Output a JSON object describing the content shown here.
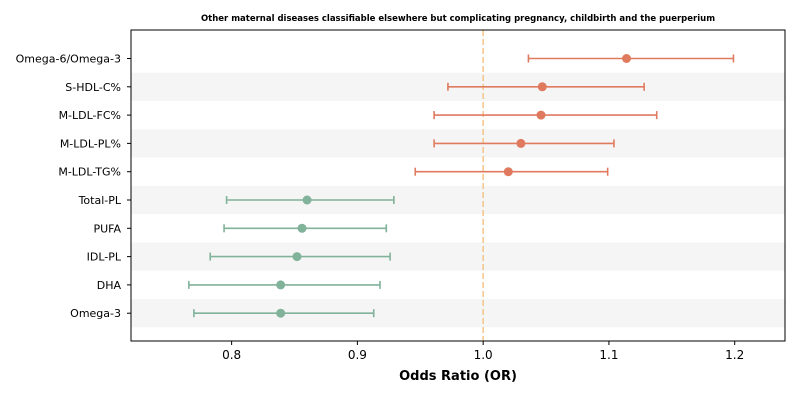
{
  "chart_data": {
    "type": "forest",
    "title": "Other maternal diseases classifiable elsewhere but complicating pregnancy, childbirth and the puerperium",
    "xlabel": "Odds Ratio (OR)",
    "xlim": [
      0.72,
      1.24
    ],
    "xticks": [
      0.8,
      0.9,
      1.0,
      1.1,
      1.2
    ],
    "xtick_labels": [
      "0.8",
      "0.9",
      "1.0",
      "1.1",
      "1.2"
    ],
    "reference_line": 1.0,
    "colors": {
      "positive": "#e07a5f",
      "negative": "#81b29a",
      "reference": "#f4c58a",
      "band": "#f5f5f5"
    },
    "rows": [
      {
        "label": "Omega-6/Omega-3",
        "or": 1.114,
        "lower": 1.036,
        "upper": 1.199,
        "group": "positive"
      },
      {
        "label": "S-HDL-C%",
        "or": 1.047,
        "lower": 0.972,
        "upper": 1.128,
        "group": "positive"
      },
      {
        "label": "M-LDL-FC%",
        "or": 1.046,
        "lower": 0.961,
        "upper": 1.138,
        "group": "positive"
      },
      {
        "label": "M-LDL-PL%",
        "or": 1.03,
        "lower": 0.961,
        "upper": 1.104,
        "group": "positive"
      },
      {
        "label": "M-LDL-TG%",
        "or": 1.02,
        "lower": 0.946,
        "upper": 1.099,
        "group": "positive"
      },
      {
        "label": "Total-PL",
        "or": 0.86,
        "lower": 0.796,
        "upper": 0.929,
        "group": "negative"
      },
      {
        "label": "PUFA",
        "or": 0.856,
        "lower": 0.794,
        "upper": 0.923,
        "group": "negative"
      },
      {
        "label": "IDL-PL",
        "or": 0.852,
        "lower": 0.783,
        "upper": 0.926,
        "group": "negative"
      },
      {
        "label": "DHA",
        "or": 0.839,
        "lower": 0.766,
        "upper": 0.918,
        "group": "negative"
      },
      {
        "label": "Omega-3",
        "or": 0.839,
        "lower": 0.77,
        "upper": 0.913,
        "group": "negative"
      }
    ]
  }
}
